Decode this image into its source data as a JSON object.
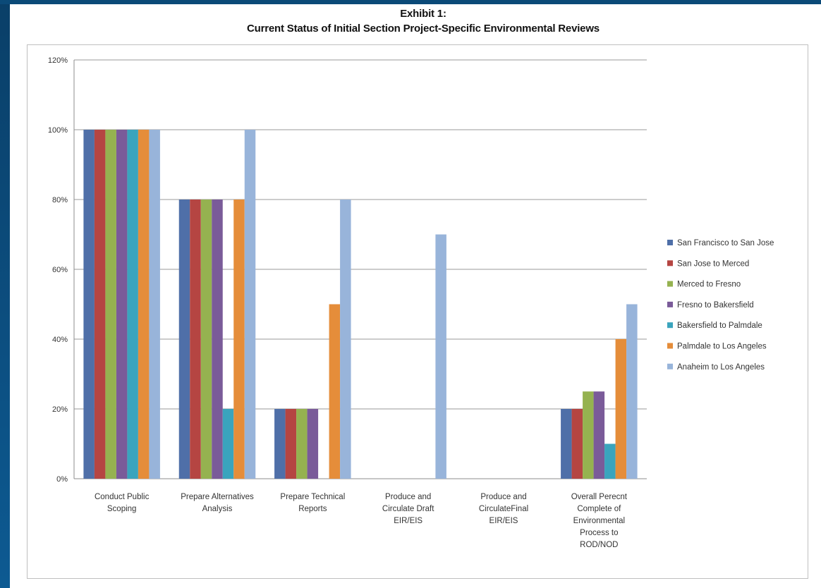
{
  "chart_data": {
    "type": "bar",
    "title": "Exhibit 1:",
    "subtitle": "Current Status of Initial Section Project-Specific Environmental Reviews",
    "xlabel": "",
    "ylabel": "",
    "ylim": [
      0,
      120
    ],
    "yticks": [
      "0%",
      "20%",
      "40%",
      "60%",
      "80%",
      "100%",
      "120%"
    ],
    "grid": true,
    "legend_position": "right",
    "categories": [
      [
        "Conduct Public",
        "Scoping"
      ],
      [
        "Prepare Alternatives",
        "Analysis"
      ],
      [
        "Prepare Technical",
        "Reports"
      ],
      [
        "Produce and",
        "Circulate Draft",
        "EIR/EIS"
      ],
      [
        "Produce and",
        "CirculateFinal",
        "EIR/EIS"
      ],
      [
        "Overall Perecnt",
        "Complete of",
        "Environmental",
        "Process to",
        "ROD/NOD"
      ]
    ],
    "series": [
      {
        "name": "San Francisco to San Jose",
        "color": "#4f6fa8",
        "values": [
          100,
          80,
          20,
          0,
          0,
          20
        ]
      },
      {
        "name": "San Jose to Merced",
        "color": "#b54542",
        "values": [
          100,
          80,
          20,
          0,
          0,
          20
        ]
      },
      {
        "name": "Merced to Fresno",
        "color": "#95b250",
        "values": [
          100,
          80,
          20,
          0,
          0,
          25
        ]
      },
      {
        "name": "Fresno to Bakersfield",
        "color": "#7a5b99",
        "values": [
          100,
          80,
          20,
          0,
          0,
          25
        ]
      },
      {
        "name": "Bakersfield to Palmdale",
        "color": "#3aa4bd",
        "values": [
          100,
          20,
          0,
          0,
          0,
          10
        ]
      },
      {
        "name": "Palmdale to Los Angeles",
        "color": "#e58d3a",
        "values": [
          100,
          80,
          50,
          0,
          0,
          40
        ]
      },
      {
        "name": "Anaheim to Los Angeles",
        "color": "#98b4da",
        "values": [
          100,
          100,
          80,
          70,
          0,
          50
        ]
      }
    ]
  }
}
